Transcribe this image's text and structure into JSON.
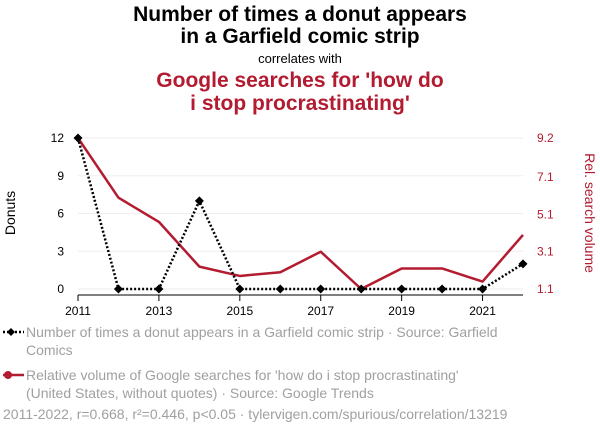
{
  "colors": {
    "series1": "#000000",
    "series2": "#b31b30",
    "muted": "#a0a0a0",
    "grid": "#eeeeee"
  },
  "header": {
    "title_line1": "Number of times a donut appears",
    "title_line2": "in a Garfield comic strip",
    "connector": "correlates with",
    "subtitle_line1": "Google searches for 'how do",
    "subtitle_line2": "i stop procrastinating'"
  },
  "legend": {
    "series1_line1": "Number of times a donut appears in a Garfield comic strip · Source: Garfield",
    "series1_line2": "Comics",
    "series2_line1": "Relative volume of Google searches for 'how do i stop procrastinating'",
    "series2_line2": "(United States, without quotes) · Source: Google Trends"
  },
  "footer": "2011-2022, r=0.668, r²=0.446, p<0.05 · tylervigen.com/spurious/correlation/13219",
  "chart_data": {
    "type": "line",
    "x": [
      2011,
      2012,
      2013,
      2014,
      2015,
      2016,
      2017,
      2018,
      2019,
      2020,
      2021,
      2022
    ],
    "xlim": [
      2011,
      2022
    ],
    "x_ticks": [
      "2011",
      "2013",
      "2015",
      "2017",
      "2019",
      "2021"
    ],
    "y_left": {
      "label": "Donuts",
      "lim": [
        0,
        12
      ],
      "ticks": [
        "0",
        "3",
        "6",
        "9",
        "12"
      ]
    },
    "y_right": {
      "label": "Rel. search volume",
      "lim": [
        1.1,
        9.2
      ],
      "ticks": [
        "1.1",
        "3.1",
        "5.1",
        "7.1",
        "9.2"
      ]
    },
    "grid": true,
    "series": [
      {
        "name": "Number of times a donut appears in a Garfield comic strip",
        "axis": "left",
        "style": "dotted",
        "marker": "diamond",
        "values": [
          12,
          0,
          0,
          7,
          0,
          0,
          0,
          0,
          0,
          0,
          0,
          2
        ]
      },
      {
        "name": "Relative volume of Google searches for 'how do i stop procrastinating'",
        "axis": "right",
        "style": "solid",
        "values": [
          9.2,
          6.0,
          4.7,
          2.3,
          1.8,
          2.0,
          3.1,
          1.1,
          2.2,
          2.2,
          1.5,
          4.0
        ]
      }
    ]
  }
}
